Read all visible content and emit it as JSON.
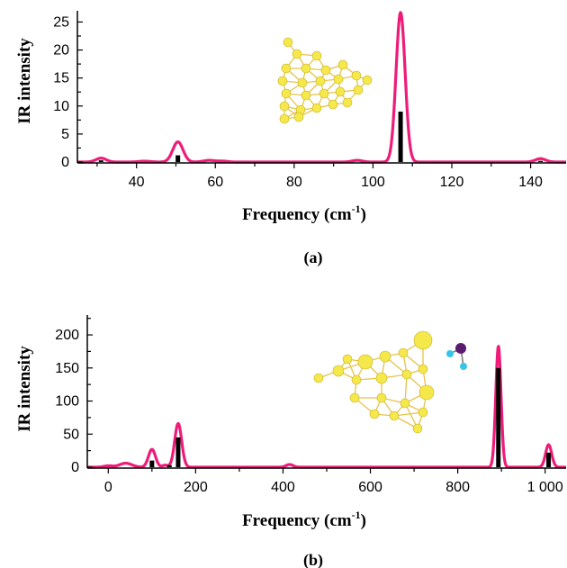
{
  "figure": {
    "panels": [
      "(a)",
      "(b)"
    ],
    "ylabel": "IR intensity",
    "xlabel_main": "Frequency (cm",
    "xlabel_sup": "-1",
    "xlabel_close": ")",
    "spectrum_color": "#ee1c78",
    "stick_color": "#000000",
    "insets": [
      {
        "icon": "gold-cluster-icon",
        "colors": {
          "atom": "#f4e84a",
          "bond": "#e8c34a"
        }
      },
      {
        "icon": "gold-cluster-with-molecule-icon",
        "colors": {
          "atom": "#f4e84a",
          "bond": "#e8c34a",
          "heavy_atom": "#5a1c6e",
          "light_atom": "#38c6e8"
        }
      }
    ]
  },
  "chart_data": [
    {
      "type": "line",
      "title": "",
      "xlabel": "Frequency (cm-1)",
      "ylabel": "IR intensity",
      "xlim": [
        25,
        149
      ],
      "ylim": [
        0,
        27
      ],
      "xticks": [
        40,
        60,
        80,
        100,
        120,
        140
      ],
      "yticks": [
        0,
        5,
        10,
        15,
        20,
        25
      ],
      "spectrum_peaks": [
        {
          "x": 31,
          "height": 0.7,
          "width": 1.3
        },
        {
          "x": 42,
          "height": 0.15,
          "width": 1.5
        },
        {
          "x": 50.5,
          "height": 3.6,
          "width": 1.3
        },
        {
          "x": 58.5,
          "height": 0.3,
          "width": 1.5
        },
        {
          "x": 62,
          "height": 0.15,
          "width": 1.2
        },
        {
          "x": 96,
          "height": 0.3,
          "width": 1.3
        },
        {
          "x": 107,
          "height": 26.7,
          "width": 1.15
        },
        {
          "x": 142.5,
          "height": 0.6,
          "width": 1.3
        }
      ],
      "sticks": [
        {
          "x": 31,
          "value": 0.3
        },
        {
          "x": 50.5,
          "value": 1.2
        },
        {
          "x": 107,
          "value": 9.0
        },
        {
          "x": 142.5,
          "value": 0.2
        }
      ]
    },
    {
      "type": "line",
      "title": "",
      "xlabel": "Frequency (cm-1)",
      "ylabel": "IR intensity",
      "xlim": [
        -48,
        1048
      ],
      "ylim": [
        0,
        230
      ],
      "xticks": [
        0,
        200,
        400,
        600,
        800,
        1000
      ],
      "xtick_labels": [
        "0",
        "200",
        "400",
        "600",
        "800",
        "1 000"
      ],
      "yticks": [
        0,
        50,
        100,
        150,
        200
      ],
      "spectrum_peaks": [
        {
          "x": 0,
          "height": 2,
          "width": 10
        },
        {
          "x": 40,
          "height": 6,
          "width": 14
        },
        {
          "x": 100,
          "height": 27,
          "width": 8
        },
        {
          "x": 130,
          "height": 3,
          "width": 6
        },
        {
          "x": 160,
          "height": 66,
          "width": 8
        },
        {
          "x": 415,
          "height": 4,
          "width": 8
        },
        {
          "x": 893,
          "height": 183,
          "width": 6
        },
        {
          "x": 1008,
          "height": 34,
          "width": 7
        }
      ],
      "sticks": [
        {
          "x": 100,
          "value": 10
        },
        {
          "x": 140,
          "value": 3
        },
        {
          "x": 160,
          "value": 45
        },
        {
          "x": 893,
          "value": 150
        },
        {
          "x": 1008,
          "value": 22
        }
      ]
    }
  ]
}
